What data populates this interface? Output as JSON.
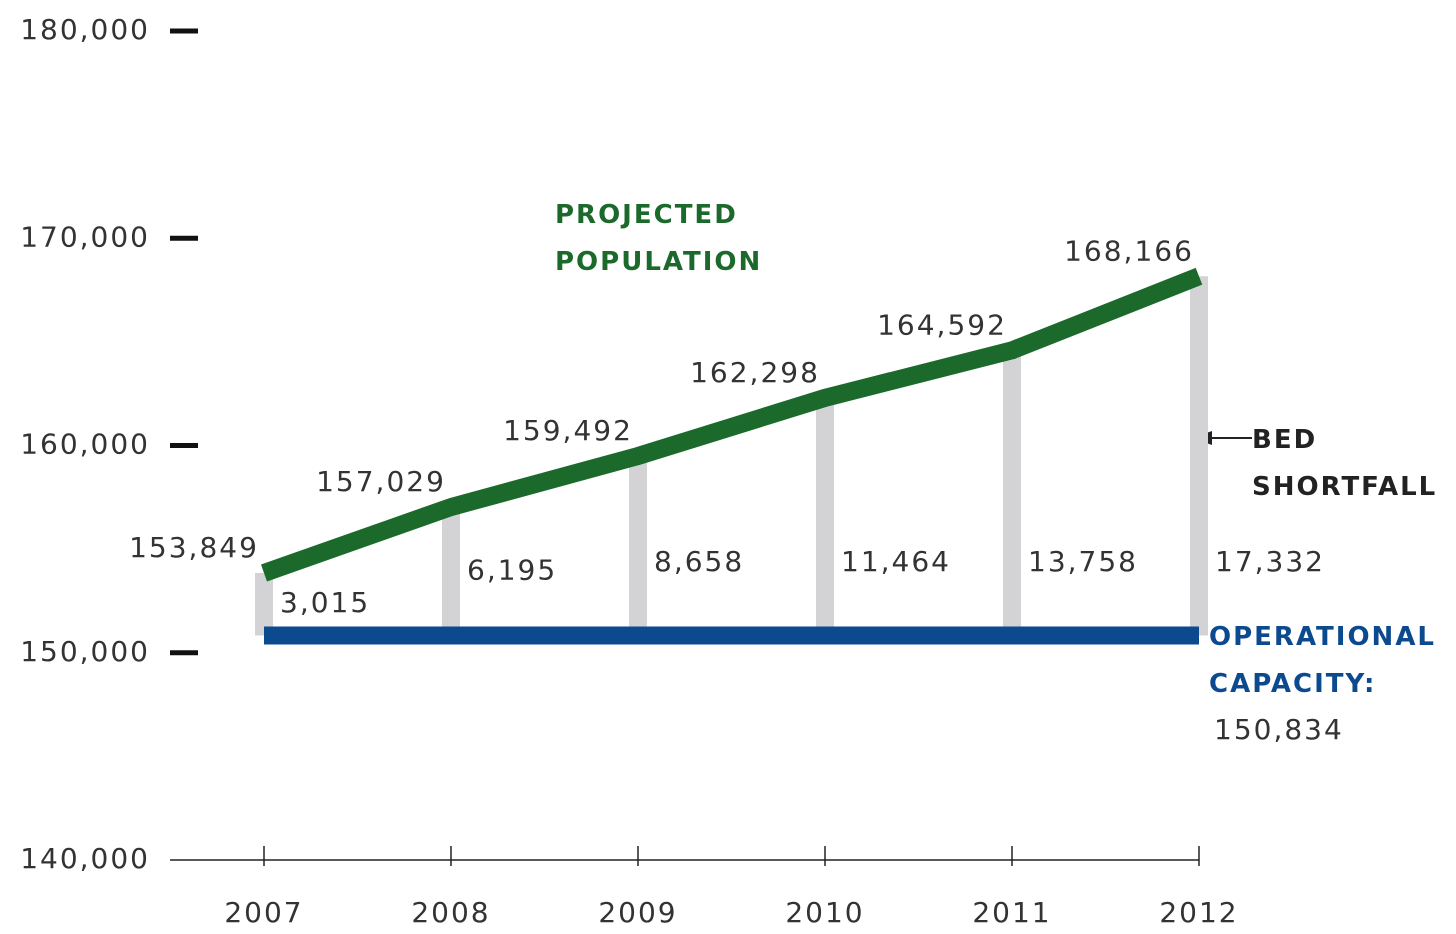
{
  "chart_data": {
    "type": "line",
    "categories": [
      "2007",
      "2008",
      "2009",
      "2010",
      "2011",
      "2012"
    ],
    "series": [
      {
        "name": "PROJECTED POPULATION",
        "color": "#1b6a2c",
        "values": [
          153849,
          157029,
          159492,
          162298,
          164592,
          168166
        ],
        "value_labels": [
          "153,849",
          "157,029",
          "159,492",
          "162,298",
          "164,592",
          "168,166"
        ]
      }
    ],
    "capacity": {
      "name": "OPERATIONAL CAPACITY:",
      "color": "#0c4a90",
      "value": 150834,
      "label": "150,834"
    },
    "shortfall": {
      "name": "BED SHORTFALL",
      "color": "#d3d3d5",
      "values": [
        3015,
        6195,
        8658,
        11464,
        13758,
        17332
      ],
      "value_labels": [
        "3,015",
        "6,195",
        "8,658",
        "11,464",
        "13,758",
        "17,332"
      ]
    },
    "ylim": [
      140000,
      180000
    ],
    "yticks": [
      {
        "value": 140000,
        "label": "140,000"
      },
      {
        "value": 150000,
        "label": "150,000"
      },
      {
        "value": 160000,
        "label": "160,000"
      },
      {
        "value": 170000,
        "label": "170,000"
      },
      {
        "value": 180000,
        "label": "180,000"
      }
    ]
  }
}
